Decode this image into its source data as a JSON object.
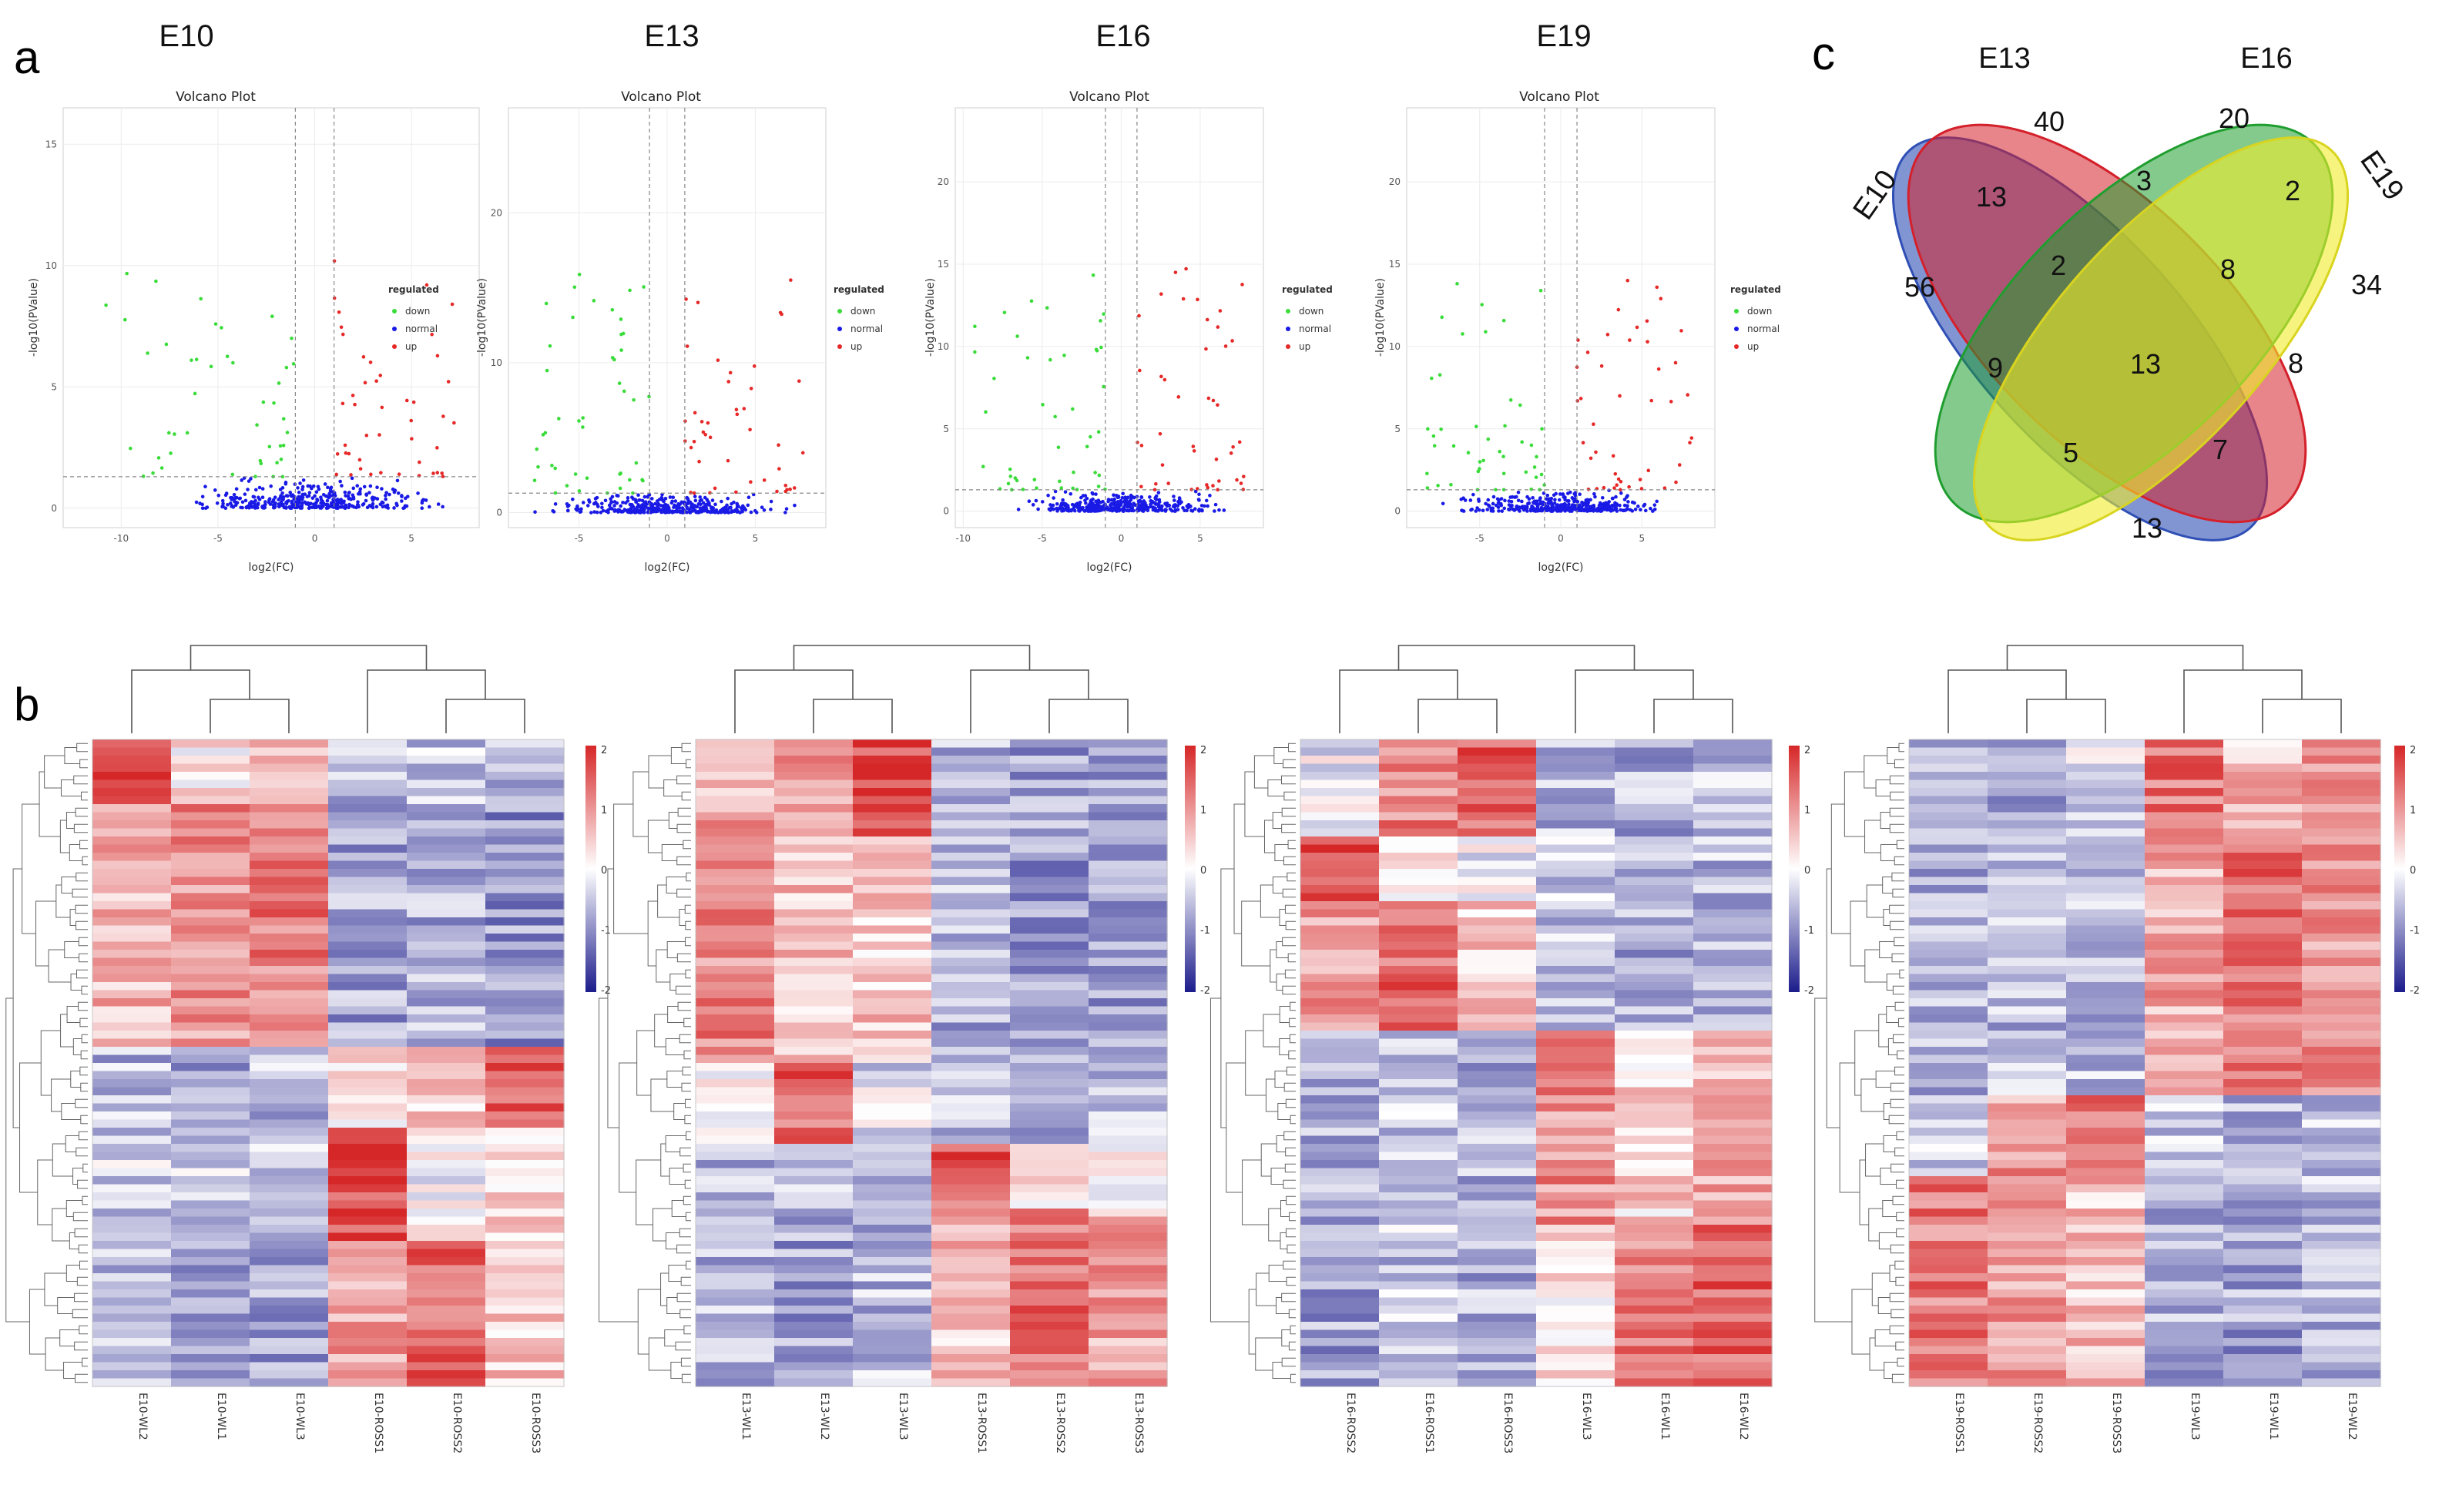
{
  "panels": {
    "a": "a",
    "b": "b",
    "c": "c"
  },
  "stages": [
    "E10",
    "E13",
    "E16",
    "E19"
  ],
  "volcano": {
    "title": "Volcano Plot",
    "xlabel": "log2(FC)",
    "ylabel": "-log10(PValue)",
    "legend_title": "regulated",
    "legend_items": [
      "down",
      "normal",
      "up"
    ],
    "colors": {
      "down": "#3adc3a",
      "normal": "#1a1ae6",
      "up": "#e62828"
    },
    "plots": [
      {
        "stage": "E10",
        "xticks": [
          -10,
          -5,
          0,
          5
        ],
        "yticks": [
          0,
          5,
          10,
          15
        ],
        "xlim": [
          -13,
          8.5
        ],
        "ylim": [
          -0.8,
          16.5
        ]
      },
      {
        "stage": "E13",
        "xticks": [
          -5,
          0,
          5
        ],
        "yticks": [
          0,
          10,
          20
        ],
        "xlim": [
          -9,
          9
        ],
        "ylim": [
          -1,
          27
        ]
      },
      {
        "stage": "E16",
        "xticks": [
          -10,
          -5,
          0,
          5
        ],
        "yticks": [
          0,
          5,
          10,
          15,
          20
        ],
        "xlim": [
          -10.5,
          9
        ],
        "ylim": [
          -1,
          24.5
        ]
      },
      {
        "stage": "E19",
        "xticks": [
          -5,
          0,
          5
        ],
        "yticks": [
          0,
          5,
          10,
          15,
          20
        ],
        "xlim": [
          -9.5,
          9.5
        ],
        "ylim": [
          -1,
          24.5
        ]
      }
    ]
  },
  "venn": {
    "sets": [
      "E10",
      "E13",
      "E16",
      "E19"
    ],
    "colors": {
      "E10": "#2f4fb5",
      "E13": "#d4202a",
      "E16": "#1f9e2f",
      "E19": "#f0ec2a"
    },
    "counts": [
      {
        "key": "E10_only",
        "value": "56"
      },
      {
        "key": "E13_only",
        "value": "40"
      },
      {
        "key": "E16_only",
        "value": "20"
      },
      {
        "key": "E19_only",
        "value": "34"
      },
      {
        "key": "E10_E13",
        "value": "13"
      },
      {
        "key": "E13_E16",
        "value": "3"
      },
      {
        "key": "E16_E19",
        "value": "2"
      },
      {
        "key": "E10_E13_E16",
        "value": "2"
      },
      {
        "key": "E13_E16_E19",
        "value": "8"
      },
      {
        "key": "E10_E16",
        "value": "9"
      },
      {
        "key": "all",
        "value": "13"
      },
      {
        "key": "E13_E19",
        "value": "8"
      },
      {
        "key": "E10_E16_E19",
        "value": "5"
      },
      {
        "key": "E10_E13_E19",
        "value": "7"
      },
      {
        "key": "E10_E19",
        "value": "13"
      }
    ]
  },
  "heatmaps": [
    {
      "stage": "E10",
      "columns": [
        "E10-WL2",
        "E10-WL1",
        "E10-WL3",
        "E10-ROSS1",
        "E10-ROSS2",
        "E10-ROSS3"
      ]
    },
    {
      "stage": "E13",
      "columns": [
        "E13-WL1",
        "E13-WL2",
        "E13-WL3",
        "E13-ROSS1",
        "E13-ROSS2",
        "E13-ROSS3"
      ]
    },
    {
      "stage": "E16",
      "columns": [
        "E16-ROSS2",
        "E16-ROSS1",
        "E16-ROSS3",
        "E16-WL3",
        "E16-WL1",
        "E16-WL2"
      ]
    },
    {
      "stage": "E19",
      "columns": [
        "E19-ROSS1",
        "E19-ROSS2",
        "E19-ROSS3",
        "E19-WL3",
        "E19-WL1",
        "E19-WL2"
      ]
    }
  ],
  "color_scale": {
    "ticks": [
      "2",
      "1",
      "0",
      "-1",
      "-2"
    ],
    "high": "#d62728",
    "mid": "#ffffff",
    "low": "#1c1c8c"
  }
}
